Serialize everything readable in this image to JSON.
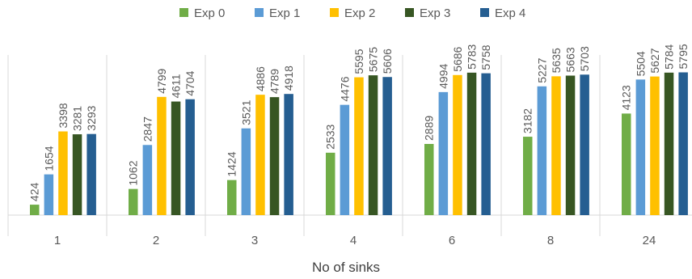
{
  "chart_data": {
    "type": "bar",
    "title": "",
    "xlabel": "No of sinks",
    "ylabel": "",
    "categories": [
      "1",
      "2",
      "3",
      "4",
      "6",
      "8",
      "24"
    ],
    "ylim": [
      0,
      6500
    ],
    "grid": false,
    "legend_position": "top",
    "series": [
      {
        "name": "Exp 0",
        "color": "#70AD47",
        "values": [
          424,
          1062,
          1424,
          2533,
          2889,
          3182,
          4123
        ]
      },
      {
        "name": "Exp 1",
        "color": "#5B9BD5",
        "values": [
          1654,
          2847,
          3521,
          4476,
          4994,
          5227,
          5504
        ]
      },
      {
        "name": "Exp 2",
        "color": "#FFC000",
        "values": [
          3398,
          4799,
          4886,
          5595,
          5686,
          5635,
          5627
        ]
      },
      {
        "name": "Exp 3",
        "color": "#375623",
        "values": [
          3281,
          4611,
          4789,
          5675,
          5783,
          5663,
          5784
        ]
      },
      {
        "name": "Exp 4",
        "color": "#255E91",
        "values": [
          3293,
          4704,
          4918,
          5606,
          5758,
          5703,
          5795
        ]
      }
    ]
  }
}
